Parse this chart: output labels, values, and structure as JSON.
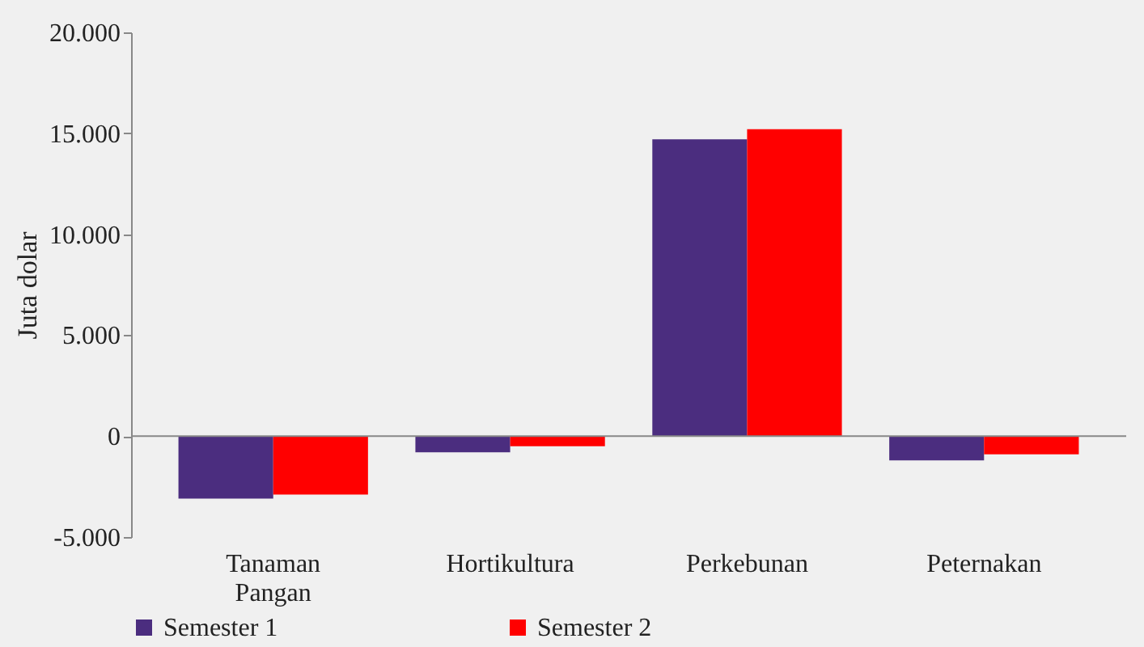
{
  "chart_data": {
    "type": "bar",
    "ylabel": "Juta dolar",
    "categories": [
      "Tanaman Pangan",
      "Hortikultura",
      "Perkebunan",
      "Peternakan"
    ],
    "series": [
      {
        "name": "Semester 1",
        "color": "#4b2d7f",
        "values": [
          -3100,
          -800,
          14700,
          -1200
        ]
      },
      {
        "name": "Semester 2",
        "color": "#ff0000",
        "values": [
          -2900,
          -500,
          15200,
          -900
        ]
      }
    ],
    "ylim": [
      -5000,
      20000
    ],
    "yticks": [
      {
        "value": -5000,
        "label": "-5.000"
      },
      0,
      {
        "value": 5000,
        "label": "5.000"
      },
      {
        "value": 10000,
        "label": "10.000"
      },
      {
        "value": 15000,
        "label": "15.000"
      },
      {
        "value": 20000,
        "label": "20.000"
      }
    ],
    "legend": "bottom"
  }
}
